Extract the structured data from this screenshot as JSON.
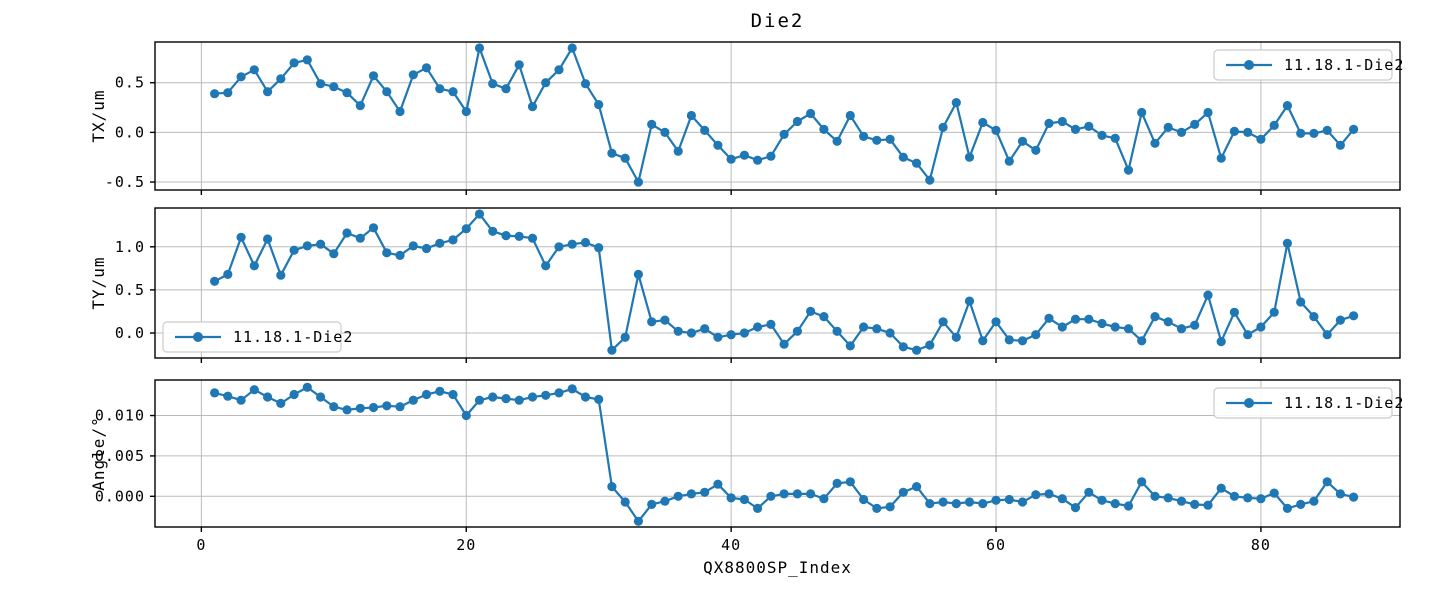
{
  "figure": {
    "title": "Die2",
    "xlabel": "QX8800SP_Index",
    "series_color": "#1f77b4",
    "grid_color": "#bbbbbb",
    "spine_color": "#000000",
    "legend_label": "11.18.1-Die2",
    "x_ticks": [
      0,
      20,
      40,
      60,
      80
    ],
    "xlim": [
      -3.5,
      90.5
    ]
  },
  "chart_data": [
    {
      "type": "line",
      "name": "TX",
      "ylabel": "TX/um",
      "legend": "11.18.1-Die2",
      "legend_position": "upper-right",
      "grid": true,
      "marker": "circle",
      "x_start": 1,
      "yticks": [
        -0.5,
        0.0,
        0.5
      ],
      "ytick_labels": [
        "-0.5",
        "0.0",
        "0.5"
      ],
      "ylim": [
        -0.58,
        0.91
      ],
      "values": [
        0.39,
        0.4,
        0.56,
        0.63,
        0.41,
        0.54,
        0.7,
        0.73,
        0.49,
        0.46,
        0.4,
        0.27,
        0.57,
        0.41,
        0.21,
        0.58,
        0.65,
        0.44,
        0.41,
        0.21,
        0.85,
        0.49,
        0.44,
        0.68,
        0.26,
        0.5,
        0.63,
        0.85,
        0.49,
        0.28,
        -0.21,
        -0.26,
        -0.5,
        0.08,
        0.0,
        -0.19,
        0.17,
        0.02,
        -0.13,
        -0.27,
        -0.23,
        -0.28,
        -0.24,
        -0.02,
        0.11,
        0.19,
        0.03,
        -0.09,
        0.17,
        -0.04,
        -0.08,
        -0.07,
        -0.25,
        -0.31,
        -0.48,
        0.05,
        0.3,
        -0.25,
        0.1,
        0.02,
        -0.29,
        -0.09,
        -0.18,
        0.09,
        0.11,
        0.03,
        0.06,
        -0.03,
        -0.06,
        -0.38,
        0.2,
        -0.11,
        0.05,
        0.0,
        0.08,
        0.2,
        -0.26,
        0.01,
        0.0,
        -0.07,
        0.07,
        0.27,
        -0.01,
        -0.01,
        0.02,
        -0.13,
        0.03
      ]
    },
    {
      "type": "line",
      "name": "TY",
      "ylabel": "TY/um",
      "legend": "11.18.1-Die2",
      "legend_position": "lower-left",
      "grid": true,
      "marker": "circle",
      "x_start": 1,
      "yticks": [
        0.0,
        0.5,
        1.0
      ],
      "ytick_labels": [
        "0.0",
        "0.5",
        "1.0"
      ],
      "ylim": [
        -0.29,
        1.45
      ],
      "values": [
        0.6,
        0.68,
        1.11,
        0.78,
        1.09,
        0.67,
        0.96,
        1.01,
        1.03,
        0.92,
        1.16,
        1.1,
        1.22,
        0.93,
        0.9,
        1.01,
        0.98,
        1.04,
        1.08,
        1.21,
        1.38,
        1.18,
        1.13,
        1.12,
        1.1,
        0.78,
        1.0,
        1.03,
        1.05,
        0.99,
        -0.2,
        -0.05,
        0.68,
        0.13,
        0.15,
        0.02,
        0.0,
        0.05,
        -0.05,
        -0.02,
        0.0,
        0.07,
        0.1,
        -0.13,
        0.02,
        0.25,
        0.19,
        0.02,
        -0.15,
        0.07,
        0.05,
        0.0,
        -0.16,
        -0.2,
        -0.14,
        0.13,
        -0.05,
        0.37,
        -0.09,
        0.13,
        -0.08,
        -0.09,
        -0.02,
        0.17,
        0.07,
        0.16,
        0.16,
        0.11,
        0.07,
        0.05,
        -0.09,
        0.19,
        0.13,
        0.05,
        0.09,
        0.44,
        -0.1,
        0.24,
        -0.02,
        0.07,
        0.24,
        1.04,
        0.36,
        0.19,
        -0.02,
        0.15,
        0.2
      ]
    },
    {
      "type": "line",
      "name": "Angle",
      "ylabel": "Angle/°",
      "legend": "11.18.1-Die2",
      "legend_position": "upper-right",
      "grid": true,
      "marker": "circle",
      "x_start": 1,
      "yticks": [
        0.0,
        0.005,
        0.01
      ],
      "ytick_labels": [
        "0.000",
        "0.005",
        "0.010"
      ],
      "ylim": [
        -0.0038,
        0.0144
      ],
      "values": [
        0.0128,
        0.0124,
        0.0119,
        0.0132,
        0.0123,
        0.0115,
        0.0126,
        0.0135,
        0.0123,
        0.0111,
        0.0107,
        0.0109,
        0.011,
        0.0112,
        0.0111,
        0.0119,
        0.0126,
        0.013,
        0.0126,
        0.01,
        0.0119,
        0.0123,
        0.0121,
        0.0119,
        0.0123,
        0.0125,
        0.0128,
        0.0133,
        0.0123,
        0.012,
        0.0012,
        -0.0007,
        -0.0031,
        -0.001,
        -0.0006,
        0.0,
        0.0003,
        0.0005,
        0.0015,
        -0.0002,
        -0.0004,
        -0.0015,
        0.0,
        0.0003,
        0.0003,
        0.0003,
        -0.0003,
        0.0016,
        0.0018,
        -0.0004,
        -0.0015,
        -0.0013,
        0.0005,
        0.0012,
        -0.0009,
        -0.0007,
        -0.0009,
        -0.0007,
        -0.0009,
        -0.0005,
        -0.0004,
        -0.0007,
        0.0002,
        0.0003,
        -0.0003,
        -0.0014,
        0.0005,
        -0.0005,
        -0.0009,
        -0.0012,
        0.0018,
        0.0,
        -0.0002,
        -0.0006,
        -0.001,
        -0.0011,
        0.001,
        0.0,
        -0.0002,
        -0.0003,
        0.0004,
        -0.0015,
        -0.001,
        -0.0006,
        0.0018,
        0.0003,
        -0.0001
      ]
    }
  ]
}
